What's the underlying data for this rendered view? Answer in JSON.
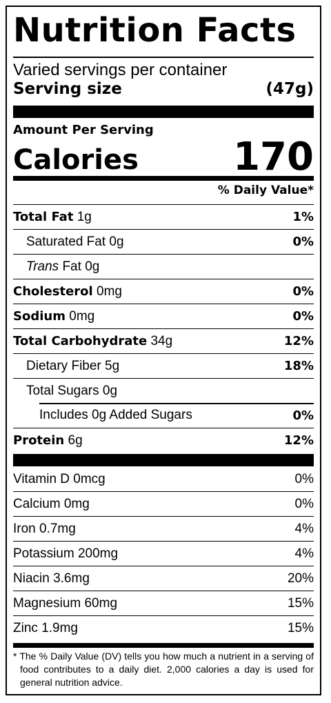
{
  "title": "Nutrition Facts",
  "servings_per_container": "Varied servings per container",
  "serving_size_label": "Serving size",
  "serving_size_value": "(47g)",
  "amount_per_serving": "Amount Per Serving",
  "calories_label": "Calories",
  "calories_value": "170",
  "daily_value_header": "% Daily Value*",
  "nutrients": [
    {
      "name": "Total Fat",
      "amount": "1g",
      "dv": "1%"
    },
    {
      "name": "Saturated Fat",
      "amount": "0g",
      "dv": "0%"
    },
    {
      "name": "Trans",
      "name_rest": "Fat",
      "amount": "0g",
      "dv": ""
    },
    {
      "name": "Cholesterol",
      "amount": "0mg",
      "dv": "0%"
    },
    {
      "name": "Sodium",
      "amount": "0mg",
      "dv": "0%"
    },
    {
      "name": "Total Carbohydrate",
      "amount": "34g",
      "dv": "12%"
    },
    {
      "name": "Dietary Fiber",
      "amount": "5g",
      "dv": "18%"
    },
    {
      "name": "Total Sugars",
      "amount": "0g",
      "dv": ""
    },
    {
      "name": "Includes 0g Added Sugars",
      "amount": "",
      "dv": "0%"
    },
    {
      "name": "Protein",
      "amount": "6g",
      "dv": "12%"
    }
  ],
  "vitamins": [
    {
      "name": "Vitamin D 0mcg",
      "dv": "0%"
    },
    {
      "name": "Calcium 0mg",
      "dv": "0%"
    },
    {
      "name": "Iron 0.7mg",
      "dv": "4%"
    },
    {
      "name": "Potassium 200mg",
      "dv": "4%"
    },
    {
      "name": "Niacin 3.6mg",
      "dv": "20%"
    },
    {
      "name": "Magnesium 60mg",
      "dv": "15%"
    },
    {
      "name": "Zinc 1.9mg",
      "dv": "15%"
    }
  ],
  "footnote": "* The % Daily Value (DV) tells you how much a nutrient in a serving of food contributes to a daily diet. 2,000 calories a day is used for general nutrition advice."
}
